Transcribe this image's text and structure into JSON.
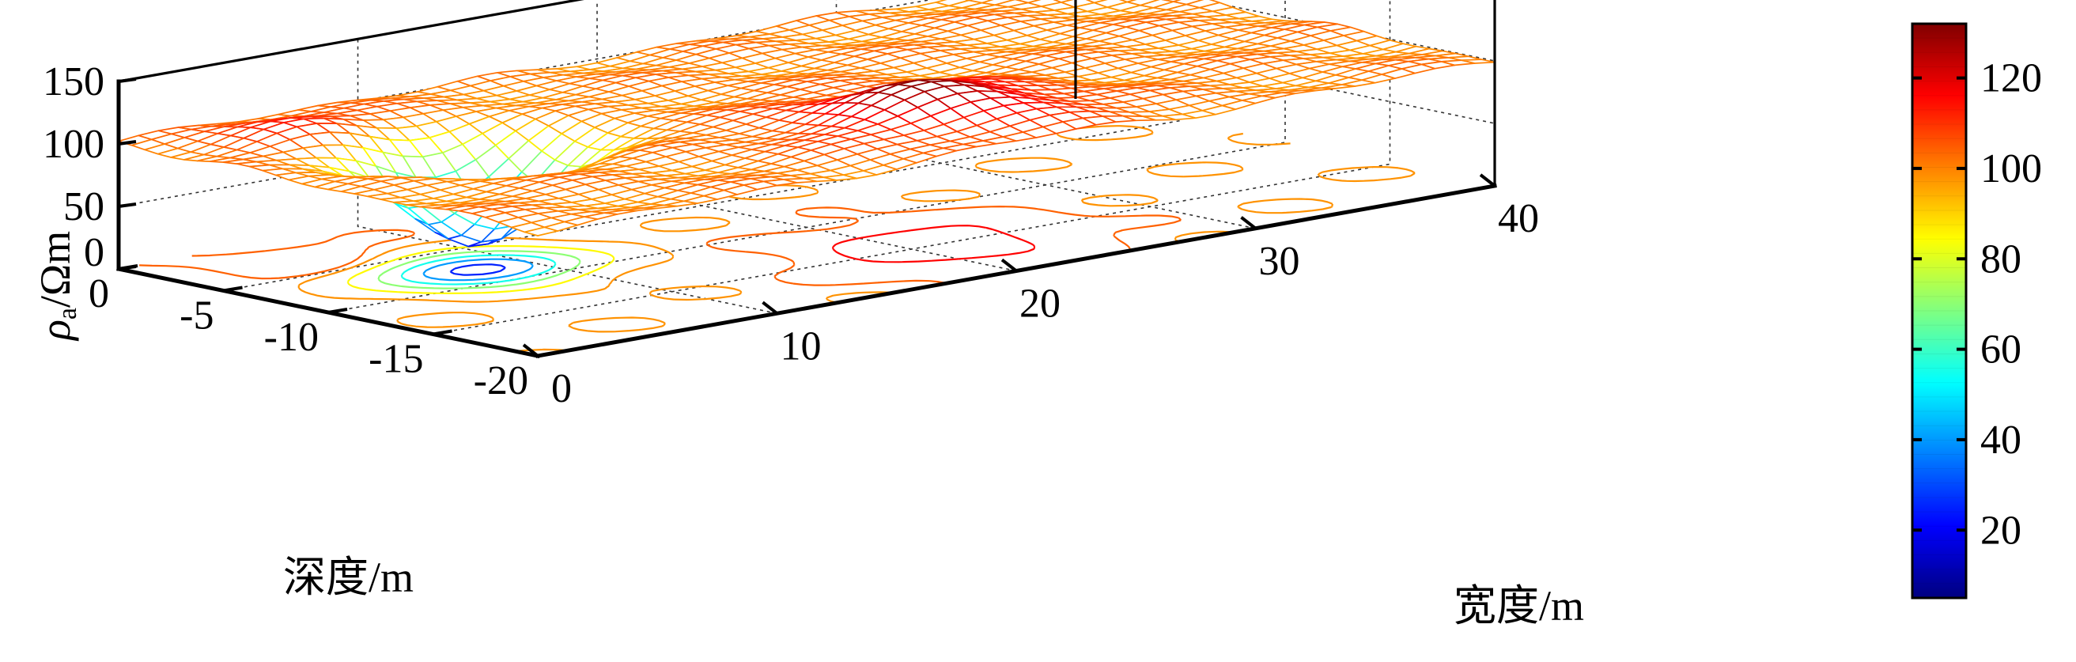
{
  "chart_data": {
    "type": "surface",
    "subtype": "3d mesh surface with contour projection on floor and colorbar",
    "title": "",
    "zlabel_parts": {
      "rho": "ρ",
      "sub": "a",
      "unit": "/Ωm"
    },
    "xlabel": "深度/m",
    "ylabel": "宽度/m",
    "x_axis": {
      "name": "depth",
      "ticks": [
        "0",
        "-5",
        "-10",
        "-15",
        "-20"
      ],
      "range": [
        -20,
        0
      ]
    },
    "y_axis": {
      "name": "width",
      "ticks": [
        "0",
        "10",
        "20",
        "30",
        "40"
      ],
      "range": [
        0,
        40
      ]
    },
    "z_axis": {
      "ticks": [
        "0",
        "50",
        "100",
        "150"
      ],
      "range": [
        0,
        150
      ]
    },
    "grid": true,
    "surface": {
      "background_resistivity": 100,
      "features": [
        {
          "kind": "low",
          "depth": -8,
          "width": 8,
          "amplitude": -85,
          "sigma_depth": 1.8,
          "sigma_width": 2.4
        },
        {
          "kind": "high",
          "depth": -15,
          "width": 21,
          "amplitude": 28,
          "sigma_depth": 2.6,
          "sigma_width": 3.2
        },
        {
          "kind": "high",
          "depth": -3,
          "width": 5,
          "amplitude": 12,
          "sigma_depth": 2.0,
          "sigma_width": 2.5
        }
      ]
    },
    "colorbar": {
      "ticks": [
        "20",
        "40",
        "60",
        "80",
        "100",
        "120"
      ],
      "range": [
        5,
        132
      ],
      "colormap": "jet",
      "colors": [
        "#00008f",
        "#0000ff",
        "#00ffff",
        "#ffff00",
        "#ff0000",
        "#800000"
      ]
    }
  }
}
